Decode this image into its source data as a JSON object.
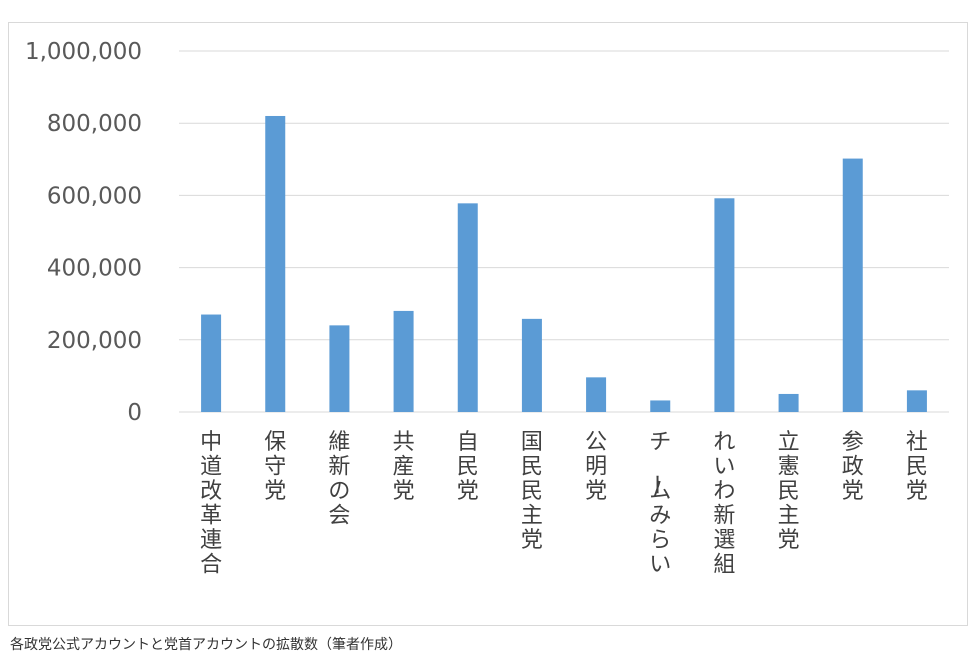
{
  "caption": "各政党公式アカウントと党首アカウントの拡散数（筆者作成）",
  "colors": {
    "bar": "#5b9bd5",
    "grid": "#d9d9d9",
    "axis_text": "#595959"
  },
  "chart_data": {
    "type": "bar",
    "title": "",
    "xlabel": "",
    "ylabel": "",
    "ylim": [
      0,
      1000000
    ],
    "yticks": [
      0,
      200000,
      400000,
      600000,
      800000,
      1000000
    ],
    "ytick_labels": [
      "0",
      "200,000",
      "400,000",
      "600,000",
      "800,000",
      "1,000,000"
    ],
    "grid": true,
    "categories": [
      "中道改革連合",
      "保守党",
      "維新の会",
      "共産党",
      "自民党",
      "国民民主党",
      "公明党",
      "チームみらい",
      "れいわ新選組",
      "立憲民主党",
      "参政党",
      "社民党"
    ],
    "values": [
      270000,
      820000,
      240000,
      280000,
      578000,
      258000,
      96000,
      32000,
      592000,
      50000,
      702000,
      60000
    ]
  }
}
